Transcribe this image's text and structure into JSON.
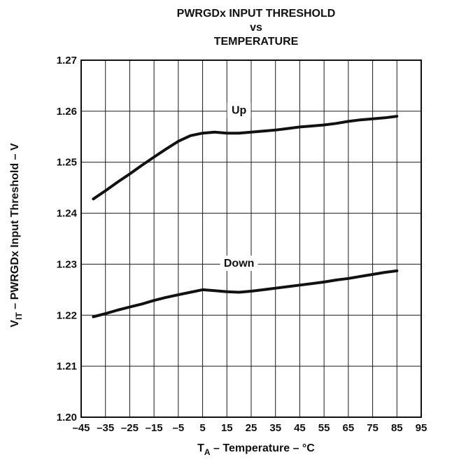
{
  "chart_data": {
    "type": "line",
    "title": [
      "PWRGDx INPUT THRESHOLD",
      "vs",
      "TEMPERATURE"
    ],
    "xlabel": {
      "main": "T",
      "sub": "A",
      "rest": " – Temperature – °C"
    },
    "ylabel": {
      "main": "V",
      "sub": "IT",
      "rest": " – PWRGDx Input Threshold – V"
    },
    "xlim": [
      -45,
      95
    ],
    "ylim": [
      1.2,
      1.27
    ],
    "xticks": [
      -45,
      -35,
      -25,
      -15,
      -5,
      5,
      15,
      25,
      35,
      45,
      55,
      65,
      75,
      85,
      95
    ],
    "xtick_labels": [
      "–45",
      "–35",
      "–25",
      "–15",
      "–5",
      "5",
      "15",
      "25",
      "35",
      "45",
      "55",
      "65",
      "75",
      "85",
      "95"
    ],
    "yticks": [
      1.2,
      1.21,
      1.22,
      1.23,
      1.24,
      1.25,
      1.26,
      1.27
    ],
    "ytick_labels": [
      "1.20",
      "1.21",
      "1.22",
      "1.23",
      "1.24",
      "1.25",
      "1.26",
      "1.27"
    ],
    "grid": true,
    "series": [
      {
        "name": "Up",
        "x": [
          -40,
          -35,
          -30,
          -25,
          -20,
          -15,
          -10,
          -5,
          0,
          5,
          10,
          15,
          20,
          25,
          30,
          35,
          40,
          45,
          50,
          55,
          60,
          65,
          70,
          75,
          80,
          85
        ],
        "y": [
          1.2428,
          1.2444,
          1.2461,
          1.2477,
          1.2494,
          1.251,
          1.2526,
          1.2541,
          1.2552,
          1.2557,
          1.2559,
          1.2557,
          1.2557,
          1.2559,
          1.2561,
          1.2563,
          1.2566,
          1.2569,
          1.2571,
          1.2573,
          1.2576,
          1.258,
          1.2583,
          1.2585,
          1.2587,
          1.259
        ],
        "label_at": [
          20,
          1.2595
        ]
      },
      {
        "name": "Down",
        "x": [
          -40,
          -35,
          -30,
          -25,
          -20,
          -15,
          -10,
          -5,
          0,
          5,
          10,
          15,
          20,
          25,
          30,
          35,
          40,
          45,
          50,
          55,
          60,
          65,
          70,
          75,
          80,
          85
        ],
        "y": [
          1.2197,
          1.2203,
          1.221,
          1.2216,
          1.2222,
          1.2229,
          1.2235,
          1.224,
          1.2245,
          1.225,
          1.2248,
          1.2246,
          1.2245,
          1.2247,
          1.225,
          1.2253,
          1.2256,
          1.2259,
          1.2262,
          1.2265,
          1.2269,
          1.2272,
          1.2276,
          1.228,
          1.2284,
          1.2287
        ],
        "label_at": [
          20,
          1.2295
        ]
      }
    ],
    "colors": {
      "line": "#111111",
      "grid": "#1a1a1a",
      "axis": "#111111"
    }
  }
}
